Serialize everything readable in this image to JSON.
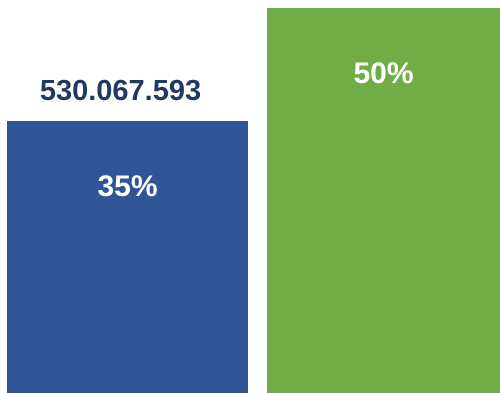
{
  "chart_data": {
    "type": "bar",
    "ylim": [
      0,
      100
    ],
    "series": [
      {
        "percent": 35,
        "percent_label": "35%",
        "value_label": "530.067.593",
        "color": "#2f5597"
      },
      {
        "percent": 50,
        "percent_label": "50%",
        "value_label": "",
        "color": "#70ad47"
      }
    ],
    "label_color": "#1f3864"
  }
}
